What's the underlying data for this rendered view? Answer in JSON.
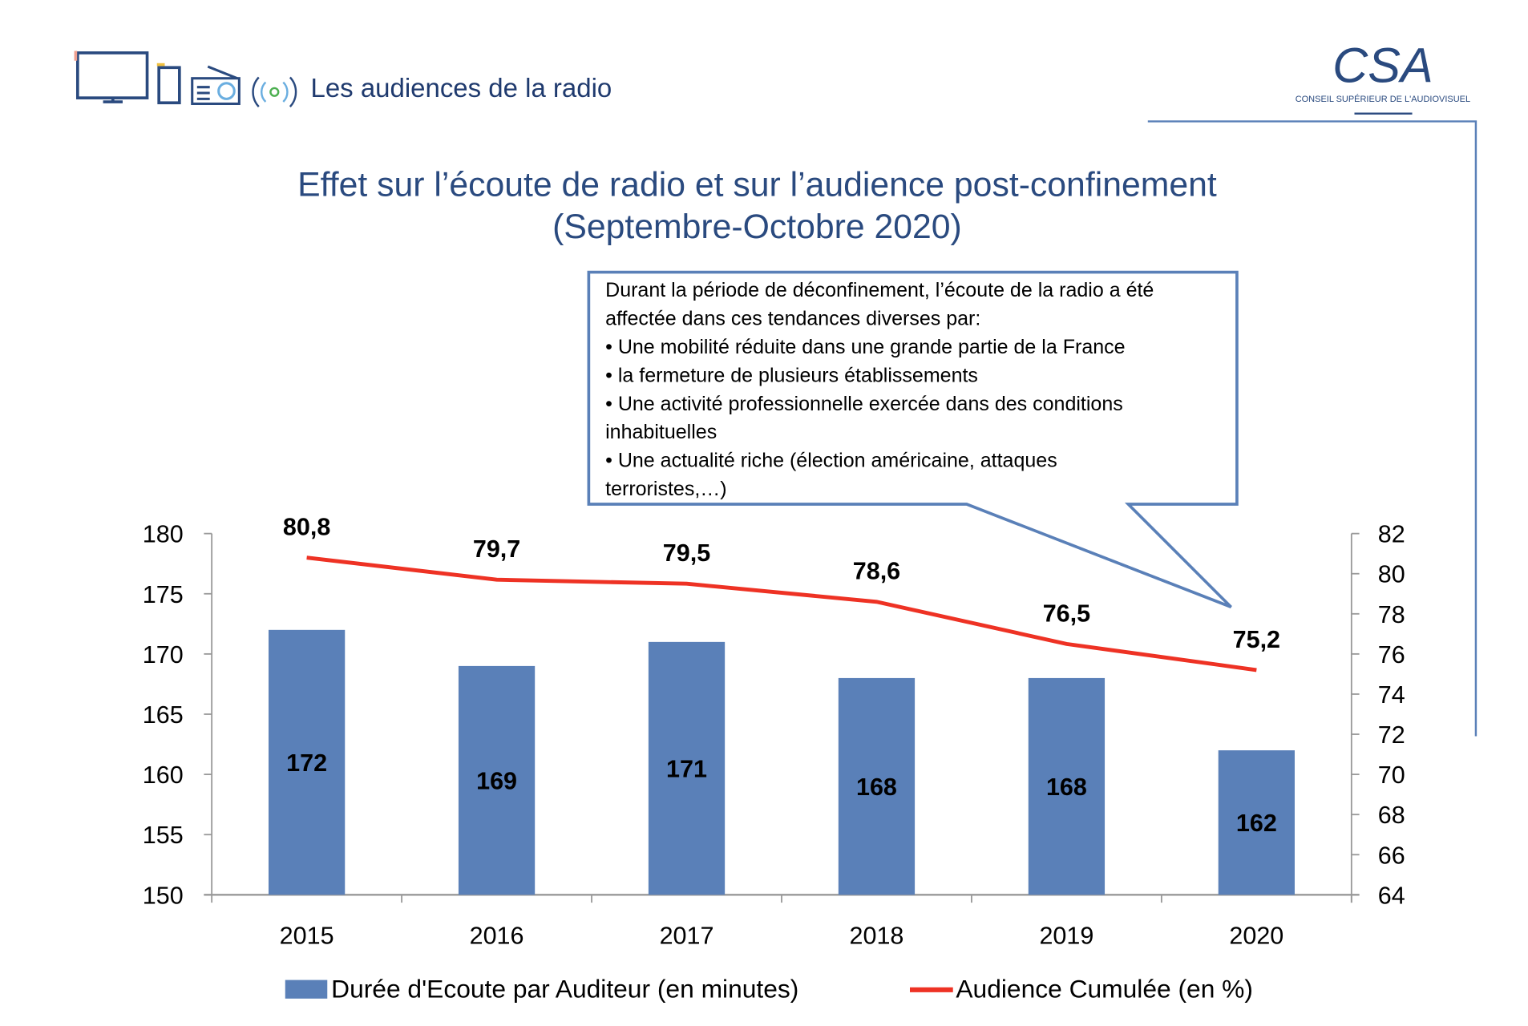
{
  "header": {
    "section_title": "Les audiences de la radio",
    "logo_text": "CSA",
    "logo_subtitle": "CONSEIL SUPÉRIEUR DE L'AUDIOVISUEL",
    "icons": [
      "tv-icon",
      "phone-icon",
      "radio-icon",
      "broadcast-icon"
    ]
  },
  "callout": {
    "lines": [
      "Durant la période de déconfinement, l’écoute de la radio a été",
      "affectée dans ces tendances diverses par:",
      "• Une mobilité réduite dans une grande partie de la France",
      "• la fermeture de plusieurs établissements",
      "• Une activité professionnelle exercée dans des conditions",
      "inhabituelles",
      "• Une actualité riche (élection américaine, attaques",
      "terroristes,…)"
    ]
  },
  "chart_data": {
    "type": "bar+line",
    "title": "Effet sur l’écoute de radio et sur l’audience post-confinement",
    "subtitle": "(Septembre-Octobre 2020)",
    "categories": [
      "2015",
      "2016",
      "2017",
      "2018",
      "2019",
      "2020"
    ],
    "series": [
      {
        "name": "Durée d'Ecoute par Auditeur (en minutes)",
        "type": "bar",
        "axis": "left",
        "values": [
          172,
          169,
          171,
          168,
          168,
          162
        ],
        "labels": [
          "172",
          "169",
          "171",
          "168",
          "168",
          "162"
        ],
        "color": "#5a80b8"
      },
      {
        "name": "Audience Cumulée (en %)",
        "type": "line",
        "axis": "right",
        "values": [
          80.8,
          79.7,
          79.5,
          78.6,
          76.5,
          75.2
        ],
        "labels": [
          "80,8",
          "79,7",
          "79,5",
          "78,6",
          "76,5",
          "75,2"
        ],
        "color": "#ee3224"
      }
    ],
    "y_left": {
      "ylim": [
        150,
        180
      ],
      "ticks": [
        "150",
        "155",
        "160",
        "165",
        "170",
        "175",
        "180"
      ]
    },
    "y_right": {
      "ylim": [
        64,
        82
      ],
      "ticks": [
        "64",
        "66",
        "68",
        "70",
        "72",
        "74",
        "76",
        "78",
        "80",
        "82"
      ]
    },
    "grid": false,
    "legend": "bottom"
  },
  "colors": {
    "title": "#2a4a7f",
    "header": "#1f3a6e",
    "callout_border": "#5a80b8",
    "bar": "#5a80b8",
    "line": "#ee3224"
  }
}
